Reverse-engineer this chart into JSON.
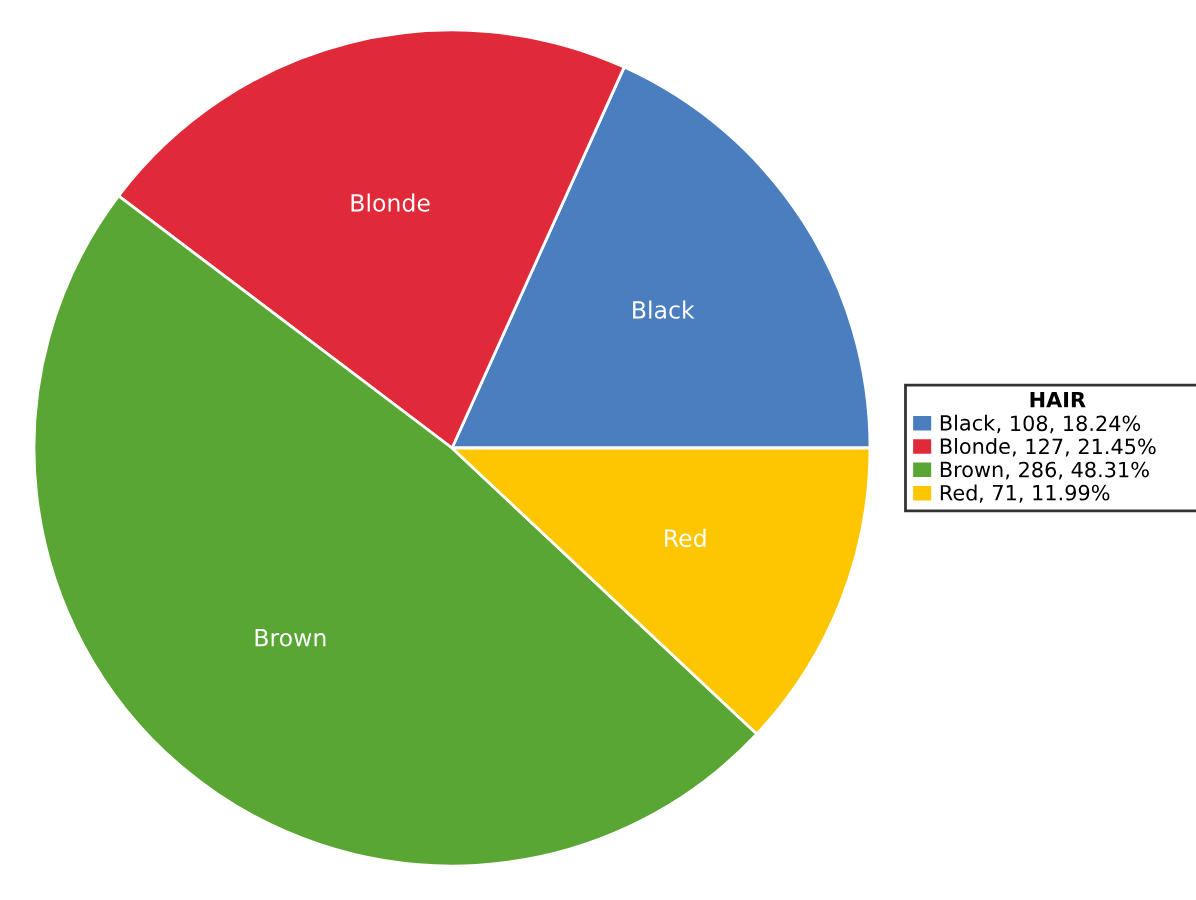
{
  "chart_data": {
    "type": "pie",
    "legend_title": "HAIR",
    "legend": "right",
    "categories": [
      "Black",
      "Blonde",
      "Brown",
      "Red"
    ],
    "values": [
      108,
      127,
      286,
      71
    ],
    "colors": [
      "#4a7ebf",
      "#e12a39",
      "#5aa634",
      "#fec600"
    ],
    "value_labels": [
      ", 108, 18.24%",
      ", 127, 21.45%",
      ", 286, 48.31%",
      ", 71, 11.99%"
    ]
  }
}
